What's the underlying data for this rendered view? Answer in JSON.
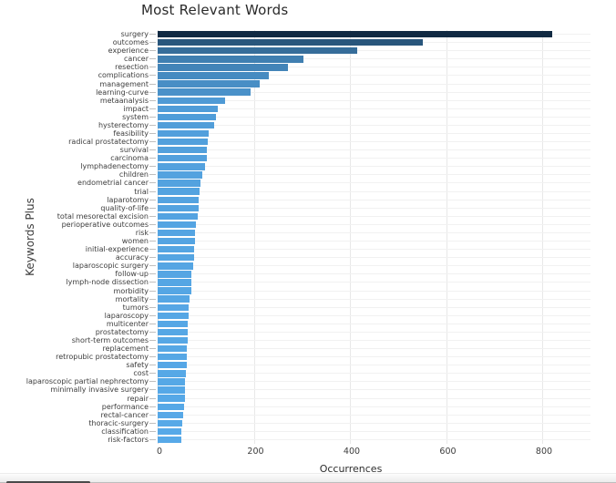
{
  "chart_data": {
    "type": "bar",
    "orientation": "horizontal",
    "title": "Most Relevant Words",
    "xlabel": "Occurrences",
    "ylabel": "Keywords Plus",
    "x_ticks": [
      0,
      200,
      400,
      600,
      800
    ],
    "xlim": [
      0,
      900
    ],
    "grid": true,
    "legend": "none",
    "bar_color_low": "#57A9E8",
    "bar_color_high": "#112A43",
    "categories": [
      "surgery",
      "outcomes",
      "experience",
      "cancer",
      "resection",
      "complications",
      "management",
      "learning-curve",
      "metaanalysis",
      "impact",
      "system",
      "hysterectomy",
      "feasibility",
      "radical prostatectomy",
      "survival",
      "carcinoma",
      "lymphadenectomy",
      "children",
      "endometrial cancer",
      "trial",
      "laparotomy",
      "quality-of-life",
      "total mesorectal excision",
      "perioperative outcomes",
      "risk",
      "women",
      "initial-experience",
      "accuracy",
      "laparoscopic surgery",
      "follow-up",
      "lymph-node dissection",
      "morbidity",
      "mortality",
      "tumors",
      "laparoscopy",
      "multicenter",
      "prostatectomy",
      "short-term outcomes",
      "replacement",
      "retropubic prostatectomy",
      "safety",
      "cost",
      "laparoscopic partial nephrectomy",
      "minimally invasive surgery",
      "repair",
      "performance",
      "rectal-cancer",
      "thoracic-surgery",
      "classification",
      "risk-factors"
    ],
    "values": [
      820,
      552,
      415,
      304,
      272,
      232,
      212,
      193,
      140,
      126,
      121,
      118,
      107,
      104,
      103,
      102,
      98,
      93,
      90,
      88,
      86,
      85,
      84,
      79,
      78,
      77,
      76,
      75,
      73,
      71,
      70,
      70,
      67,
      65,
      64,
      63,
      63,
      62,
      61,
      61,
      60,
      58,
      57,
      56,
      56,
      55,
      53,
      52,
      50,
      49
    ]
  }
}
